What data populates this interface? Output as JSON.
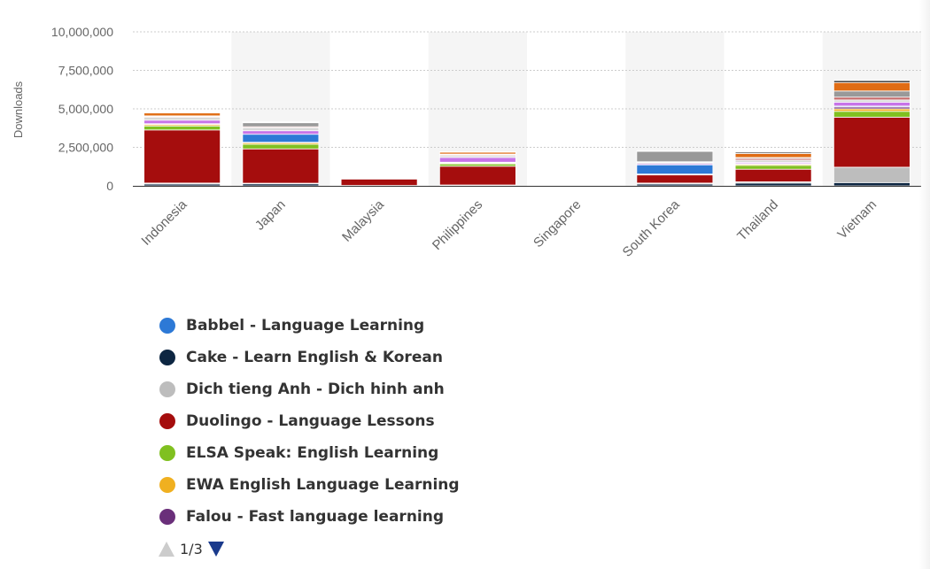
{
  "chart_data": {
    "type": "bar",
    "stacked": true,
    "categories": [
      "Indonesia",
      "Japan",
      "Malaysia",
      "Philippines",
      "Singapore",
      "South Korea",
      "Thailand",
      "Vietnam"
    ],
    "ylabel": "Downloads",
    "ylim": [
      0,
      10000000
    ],
    "yticks": [
      "0",
      "2,500,000",
      "5,000,000",
      "7,500,000",
      "10,000,000"
    ],
    "ytick_values": [
      0,
      2500000,
      5000000,
      7500000,
      10000000
    ],
    "grid": true,
    "series": [
      {
        "name": "Cake - Learn English & Korean",
        "color": "#0d2642",
        "values": [
          120000,
          130000,
          15000,
          35000,
          10000,
          120000,
          180000,
          210000
        ]
      },
      {
        "name": "Dich tieng Anh - Dich hinh anh",
        "color": "#bdbdbd",
        "values": [
          60000,
          40000,
          10000,
          20000,
          5000,
          60000,
          80000,
          1000000
        ]
      },
      {
        "name": "Duolingo - Language Lessons",
        "color": "#a50d0d",
        "values": [
          3450000,
          2230000,
          430000,
          1220000,
          70000,
          540000,
          820000,
          3250000
        ]
      },
      {
        "name": "ELSA Speak: English Learning",
        "color": "#80c020",
        "values": [
          260000,
          300000,
          20000,
          150000,
          5000,
          20000,
          250000,
          380000
        ]
      },
      {
        "name": "EWA English Language Learning",
        "color": "#f0b020",
        "values": [
          90000,
          100000,
          5000,
          60000,
          2000,
          15000,
          70000,
          160000
        ]
      },
      {
        "name": "Falou - Fast language learning",
        "color": "#6a2f7a",
        "values": [
          40000,
          30000,
          10000,
          20000,
          2000,
          10000,
          30000,
          120000
        ]
      },
      {
        "name": "Babbel - Language Learning",
        "color": "#2d79d6",
        "values": [
          15000,
          520000,
          10000,
          30000,
          2000,
          600000,
          20000,
          60000
        ]
      },
      {
        "name": "",
        "color": "#c774e8",
        "values": [
          230000,
          230000,
          25000,
          310000,
          5000,
          80000,
          80000,
          250000
        ]
      },
      {
        "name": "",
        "color": "#d8d8d8",
        "values": [
          190000,
          200000,
          40000,
          120000,
          10000,
          80000,
          140000,
          150000
        ]
      },
      {
        "name": "",
        "color": "#c66a6a",
        "values": [
          60000,
          60000,
          30000,
          60000,
          10000,
          40000,
          110000,
          180000
        ]
      },
      {
        "name": "",
        "color": "#999999",
        "values": [
          30000,
          270000,
          20000,
          40000,
          5000,
          690000,
          60000,
          400000
        ]
      },
      {
        "name": "",
        "color": "#e06c14",
        "values": [
          200000,
          20000,
          10000,
          140000,
          5000,
          15000,
          260000,
          550000
        ]
      },
      {
        "name": "",
        "color": "#222222",
        "values": [
          20000,
          30000,
          5000,
          10000,
          2000,
          20000,
          80000,
          120000
        ]
      }
    ]
  },
  "legend": {
    "items": [
      {
        "label": "Babbel - Language Learning",
        "color": "#2d79d6"
      },
      {
        "label": "Cake - Learn English & Korean",
        "color": "#0d2642"
      },
      {
        "label": "Dich tieng Anh - Dich hinh anh",
        "color": "#bdbdbd"
      },
      {
        "label": "Duolingo - Language Lessons",
        "color": "#a50d0d"
      },
      {
        "label": "ELSA Speak: English Learning",
        "color": "#80c020"
      },
      {
        "label": "EWA English Language Learning",
        "color": "#f0b020"
      },
      {
        "label": "Falou - Fast language learning",
        "color": "#6a2f7a"
      }
    ],
    "page_text": "1/3"
  },
  "colors": {
    "band": "#f5f5f5",
    "grid": "#cccccc",
    "axis_text": "#666666",
    "pager_active": "#1a3a8c",
    "pager_inactive": "#cccccc"
  }
}
